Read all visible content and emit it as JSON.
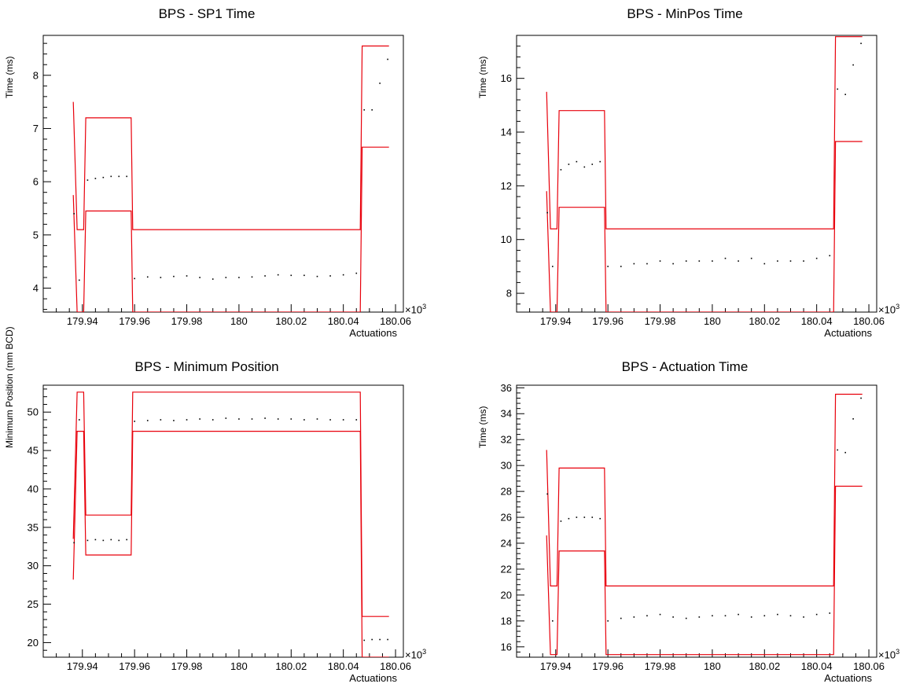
{
  "chart_data": [
    {
      "type": "line",
      "title": "BPS - SP1 Time",
      "xlabel": "Actuations",
      "ylabel": "Time (ms)",
      "x_multiplier": "×10",
      "x_multiplier_exp": "3",
      "xlim": [
        179.925,
        180.063
      ],
      "ylim": [
        3.55,
        8.75
      ],
      "xticks": [
        179.94,
        179.96,
        179.98,
        180,
        180.02,
        180.04,
        180.06
      ],
      "xtick_labels": [
        "179.94",
        "179.96",
        "179.98",
        "180",
        "180.02",
        "180.04",
        "180.06"
      ],
      "yticks": [
        4,
        5,
        6,
        7,
        8
      ],
      "ytick_labels": [
        "4",
        "5",
        "6",
        "7",
        "8"
      ],
      "series": [
        {
          "role": "upper-limit",
          "color": "#e8000b",
          "x": [
            179.9365,
            179.938,
            179.9383,
            179.9405,
            179.9413,
            179.9587,
            179.9593,
            180.0465,
            180.0472,
            180.0575
          ],
          "y": [
            7.5,
            5.1,
            5.1,
            5.1,
            7.2,
            7.2,
            5.1,
            5.1,
            8.55,
            8.55
          ]
        },
        {
          "role": "lower-limit",
          "color": "#e8000b",
          "x": [
            179.9365,
            179.938,
            179.9383,
            179.9405,
            179.9413,
            179.9587,
            179.9593,
            180.0465,
            180.0472,
            180.0575
          ],
          "y": [
            5.75,
            3.55,
            3.55,
            3.55,
            5.45,
            5.45,
            3.55,
            3.55,
            6.65,
            6.65
          ]
        },
        {
          "role": "data",
          "color": "#000000",
          "x": [
            179.9368,
            179.9388,
            179.942,
            179.945,
            179.948,
            179.951,
            179.954,
            179.957,
            179.96,
            179.965,
            179.97,
            179.975,
            179.98,
            179.985,
            179.99,
            179.995,
            180.0,
            180.005,
            180.01,
            180.015,
            180.02,
            180.025,
            180.03,
            180.035,
            180.04,
            180.045,
            180.048,
            180.051,
            180.054,
            180.057
          ],
          "y": [
            5.4,
            4.15,
            6.03,
            6.06,
            6.08,
            6.1,
            6.1,
            6.1,
            4.18,
            4.21,
            4.2,
            4.22,
            4.23,
            4.2,
            4.17,
            4.2,
            4.2,
            4.21,
            4.23,
            4.25,
            4.24,
            4.24,
            4.22,
            4.23,
            4.25,
            4.28,
            7.35,
            7.35,
            7.85,
            8.3
          ]
        }
      ]
    },
    {
      "type": "line",
      "title": "BPS - MinPos Time",
      "xlabel": "Actuations",
      "ylabel": "Time (ms)",
      "x_multiplier": "×10",
      "x_multiplier_exp": "3",
      "xlim": [
        179.925,
        180.063
      ],
      "ylim": [
        7.3,
        17.6
      ],
      "xticks": [
        179.94,
        179.96,
        179.98,
        180,
        180.02,
        180.04,
        180.06
      ],
      "xtick_labels": [
        "179.94",
        "179.96",
        "179.98",
        "180",
        "180.02",
        "180.04",
        "180.06"
      ],
      "yticks": [
        8,
        10,
        12,
        14,
        16
      ],
      "ytick_labels": [
        "8",
        "10",
        "12",
        "14",
        "16"
      ],
      "series": [
        {
          "role": "upper-limit",
          "color": "#e8000b",
          "x": [
            179.9365,
            179.938,
            179.9383,
            179.9405,
            179.9413,
            179.9587,
            179.9593,
            180.0465,
            180.0472,
            180.0575
          ],
          "y": [
            15.5,
            10.4,
            10.4,
            10.4,
            14.8,
            14.8,
            10.4,
            10.4,
            17.55,
            17.55
          ]
        },
        {
          "role": "lower-limit",
          "color": "#e8000b",
          "x": [
            179.9365,
            179.938,
            179.9383,
            179.9405,
            179.9413,
            179.9587,
            179.9593,
            180.0465,
            180.0472,
            180.0575
          ],
          "y": [
            11.8,
            7.3,
            7.3,
            7.3,
            11.2,
            11.2,
            7.3,
            7.3,
            13.65,
            13.65
          ]
        },
        {
          "role": "data",
          "color": "#000000",
          "x": [
            179.9368,
            179.9388,
            179.942,
            179.945,
            179.948,
            179.951,
            179.954,
            179.957,
            179.96,
            179.965,
            179.97,
            179.975,
            179.98,
            179.985,
            179.99,
            179.995,
            180.0,
            180.005,
            180.01,
            180.015,
            180.02,
            180.025,
            180.03,
            180.035,
            180.04,
            180.045,
            180.048,
            180.051,
            180.054,
            180.057
          ],
          "y": [
            11.0,
            9.0,
            12.6,
            12.8,
            12.9,
            12.7,
            12.8,
            12.9,
            9.0,
            9.0,
            9.1,
            9.1,
            9.2,
            9.1,
            9.2,
            9.2,
            9.2,
            9.3,
            9.2,
            9.3,
            9.1,
            9.2,
            9.2,
            9.2,
            9.3,
            9.4,
            15.6,
            15.4,
            16.5,
            17.3
          ]
        }
      ]
    },
    {
      "type": "line",
      "title": "BPS - Minimum Position",
      "xlabel": "Actuations",
      "ylabel": "Minimum Position (mm BCD)",
      "x_multiplier": "×10",
      "x_multiplier_exp": "3",
      "xlim": [
        179.925,
        180.063
      ],
      "ylim": [
        18.1,
        53.5
      ],
      "xticks": [
        179.94,
        179.96,
        179.98,
        180,
        180.02,
        180.04,
        180.06
      ],
      "xtick_labels": [
        "179.94",
        "179.96",
        "179.98",
        "180",
        "180.02",
        "180.04",
        "180.06"
      ],
      "yticks": [
        20,
        25,
        30,
        35,
        40,
        45,
        50
      ],
      "ytick_labels": [
        "20",
        "25",
        "30",
        "35",
        "40",
        "45",
        "50"
      ],
      "series": [
        {
          "role": "upper-limit",
          "color": "#e8000b",
          "x": [
            179.9365,
            179.938,
            179.9383,
            179.9405,
            179.9413,
            179.9587,
            179.9593,
            180.0465,
            180.0472,
            180.0575
          ],
          "y": [
            33.5,
            52.6,
            52.6,
            52.6,
            36.6,
            36.6,
            52.6,
            52.6,
            23.4,
            23.4
          ]
        },
        {
          "role": "lower-limit",
          "color": "#e8000b",
          "x": [
            179.9365,
            179.938,
            179.9383,
            179.9405,
            179.9413,
            179.9587,
            179.9593,
            180.0465,
            180.0472,
            180.0575
          ],
          "y": [
            28.2,
            47.5,
            47.5,
            47.5,
            31.4,
            31.4,
            47.5,
            47.5,
            18.1,
            18.1
          ]
        },
        {
          "role": "data",
          "color": "#000000",
          "x": [
            179.9368,
            179.9388,
            179.942,
            179.945,
            179.948,
            179.951,
            179.954,
            179.957,
            179.96,
            179.965,
            179.97,
            179.975,
            179.98,
            179.985,
            179.99,
            179.995,
            180.0,
            180.005,
            180.01,
            180.015,
            180.02,
            180.025,
            180.03,
            180.035,
            180.04,
            180.045,
            180.048,
            180.051,
            180.054,
            180.057
          ],
          "y": [
            33.0,
            49.0,
            33.3,
            33.4,
            33.3,
            33.4,
            33.3,
            33.4,
            48.8,
            48.9,
            49.0,
            48.9,
            49.0,
            49.1,
            49.0,
            49.2,
            49.1,
            49.1,
            49.2,
            49.1,
            49.1,
            49.0,
            49.1,
            49.0,
            49.0,
            49.0,
            20.3,
            20.4,
            20.4,
            20.4
          ]
        }
      ]
    },
    {
      "type": "line",
      "title": "BPS - Actuation Time",
      "xlabel": "Actuations",
      "ylabel": "Time (ms)",
      "x_multiplier": "×10",
      "x_multiplier_exp": "3",
      "xlim": [
        179.925,
        180.063
      ],
      "ylim": [
        15.2,
        36.2
      ],
      "xticks": [
        179.94,
        179.96,
        179.98,
        180,
        180.02,
        180.04,
        180.06
      ],
      "xtick_labels": [
        "179.94",
        "179.96",
        "179.98",
        "180",
        "180.02",
        "180.04",
        "180.06"
      ],
      "yticks": [
        16,
        18,
        20,
        22,
        24,
        26,
        28,
        30,
        32,
        34,
        36
      ],
      "ytick_labels": [
        "16",
        "18",
        "20",
        "22",
        "24",
        "26",
        "28",
        "30",
        "32",
        "34",
        "36"
      ],
      "series": [
        {
          "role": "upper-limit",
          "color": "#e8000b",
          "x": [
            179.9365,
            179.938,
            179.9383,
            179.9405,
            179.9413,
            179.9587,
            179.9593,
            180.0465,
            180.0472,
            180.0575
          ],
          "y": [
            31.2,
            20.7,
            20.7,
            20.7,
            29.8,
            29.8,
            20.7,
            20.7,
            35.5,
            35.5
          ]
        },
        {
          "role": "lower-limit",
          "color": "#e8000b",
          "x": [
            179.9365,
            179.938,
            179.9383,
            179.9405,
            179.9413,
            179.9587,
            179.9593,
            180.0465,
            180.0472,
            180.0575
          ],
          "y": [
            24.6,
            15.4,
            15.4,
            15.4,
            23.4,
            23.4,
            15.4,
            15.4,
            28.4,
            28.4
          ]
        },
        {
          "role": "data",
          "color": "#000000",
          "x": [
            179.9368,
            179.9388,
            179.942,
            179.945,
            179.948,
            179.951,
            179.954,
            179.957,
            179.96,
            179.965,
            179.97,
            179.975,
            179.98,
            179.985,
            179.99,
            179.995,
            180.0,
            180.005,
            180.01,
            180.015,
            180.02,
            180.025,
            180.03,
            180.035,
            180.04,
            180.045,
            180.048,
            180.051,
            180.054,
            180.057
          ],
          "y": [
            27.8,
            18.0,
            25.7,
            25.9,
            26.0,
            26.0,
            26.0,
            25.9,
            18.0,
            18.2,
            18.3,
            18.4,
            18.5,
            18.3,
            18.2,
            18.3,
            18.4,
            18.4,
            18.5,
            18.3,
            18.4,
            18.5,
            18.4,
            18.3,
            18.5,
            18.6,
            31.2,
            31.0,
            33.6,
            35.2
          ]
        }
      ]
    }
  ]
}
